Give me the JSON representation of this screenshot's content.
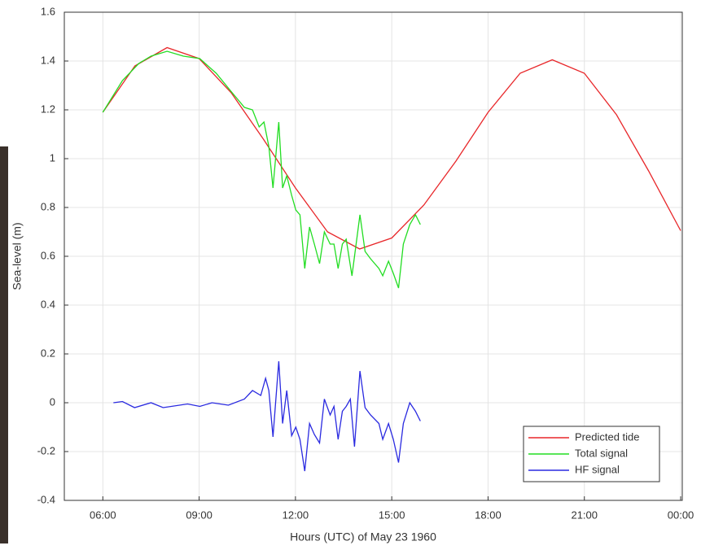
{
  "chart_data": {
    "type": "line",
    "xlabel": "Hours (UTC) of May 23 1960",
    "ylabel": "Sea-level (m)",
    "xlim": [
      4.8,
      24.05
    ],
    "ylim": [
      -0.4,
      1.6
    ],
    "xticks": [
      {
        "value": 6,
        "label": "06:00"
      },
      {
        "value": 9,
        "label": "09:00"
      },
      {
        "value": 12,
        "label": "12:00"
      },
      {
        "value": 15,
        "label": "15:00"
      },
      {
        "value": 18,
        "label": "18:00"
      },
      {
        "value": 21,
        "label": "21:00"
      },
      {
        "value": 24,
        "label": "00:00"
      }
    ],
    "yticks": [
      -0.4,
      -0.2,
      0,
      0.2,
      0.4,
      0.6,
      0.8,
      1,
      1.2,
      1.4,
      1.6
    ],
    "grid": true,
    "legend": "lower right",
    "series": [
      {
        "name": "Predicted tide",
        "color": "#e8272a",
        "x": [
          6,
          7,
          8,
          9,
          10,
          11,
          12,
          13,
          14,
          15,
          16,
          17,
          18,
          19,
          20,
          21,
          22,
          23,
          24
        ],
        "values": [
          1.19,
          1.38,
          1.455,
          1.41,
          1.27,
          1.08,
          0.88,
          0.7,
          0.63,
          0.675,
          0.81,
          0.99,
          1.19,
          1.35,
          1.405,
          1.35,
          1.18,
          0.95,
          0.705
        ]
      },
      {
        "name": "Total signal",
        "color": "#22dd22",
        "x": [
          6,
          6.61,
          7.12,
          7.5,
          8,
          8.51,
          9.02,
          9.53,
          10.03,
          10.41,
          10.66,
          10.87,
          11.02,
          11.17,
          11.3,
          11.48,
          11.6,
          11.73,
          11.88,
          12.01,
          12.14,
          12.29,
          12.44,
          12.59,
          12.75,
          12.9,
          13.08,
          13.2,
          13.33,
          13.46,
          13.58,
          13.76,
          14.01,
          14.17,
          14.34,
          14.6,
          14.72,
          14.9,
          15.05,
          15.21,
          15.36,
          15.56,
          15.74,
          15.89
        ],
        "values": [
          1.19,
          1.32,
          1.39,
          1.42,
          1.44,
          1.42,
          1.41,
          1.35,
          1.27,
          1.21,
          1.2,
          1.13,
          1.15,
          1.05,
          0.88,
          1.15,
          0.88,
          0.93,
          0.85,
          0.79,
          0.77,
          0.55,
          0.72,
          0.65,
          0.57,
          0.7,
          0.65,
          0.65,
          0.55,
          0.65,
          0.67,
          0.52,
          0.77,
          0.62,
          0.59,
          0.55,
          0.52,
          0.58,
          0.53,
          0.47,
          0.65,
          0.73,
          0.77,
          0.73
        ]
      },
      {
        "name": "HF signal",
        "color": "#2a2ae0",
        "x": [
          6.33,
          6.61,
          6.99,
          7.5,
          7.88,
          8.64,
          9.02,
          9.4,
          9.91,
          10.41,
          10.66,
          10.92,
          11.07,
          11.17,
          11.3,
          11.48,
          11.6,
          11.73,
          11.88,
          12.01,
          12.14,
          12.29,
          12.44,
          12.59,
          12.75,
          12.9,
          13.08,
          13.2,
          13.33,
          13.46,
          13.58,
          13.71,
          13.84,
          14.01,
          14.17,
          14.34,
          14.6,
          14.72,
          14.9,
          15.05,
          15.21,
          15.36,
          15.56,
          15.74,
          15.89
        ],
        "values": [
          0,
          0.005,
          -0.02,
          0,
          -0.02,
          -0.005,
          -0.015,
          0,
          -0.01,
          0.015,
          0.05,
          0.03,
          0.1,
          0.05,
          -0.14,
          0.17,
          -0.085,
          0.05,
          -0.135,
          -0.1,
          -0.15,
          -0.28,
          -0.085,
          -0.13,
          -0.165,
          0.015,
          -0.05,
          -0.015,
          -0.15,
          -0.035,
          -0.015,
          0.015,
          -0.18,
          0.13,
          -0.02,
          -0.05,
          -0.085,
          -0.15,
          -0.085,
          -0.15,
          -0.245,
          -0.085,
          0,
          -0.035,
          -0.075
        ]
      }
    ]
  }
}
